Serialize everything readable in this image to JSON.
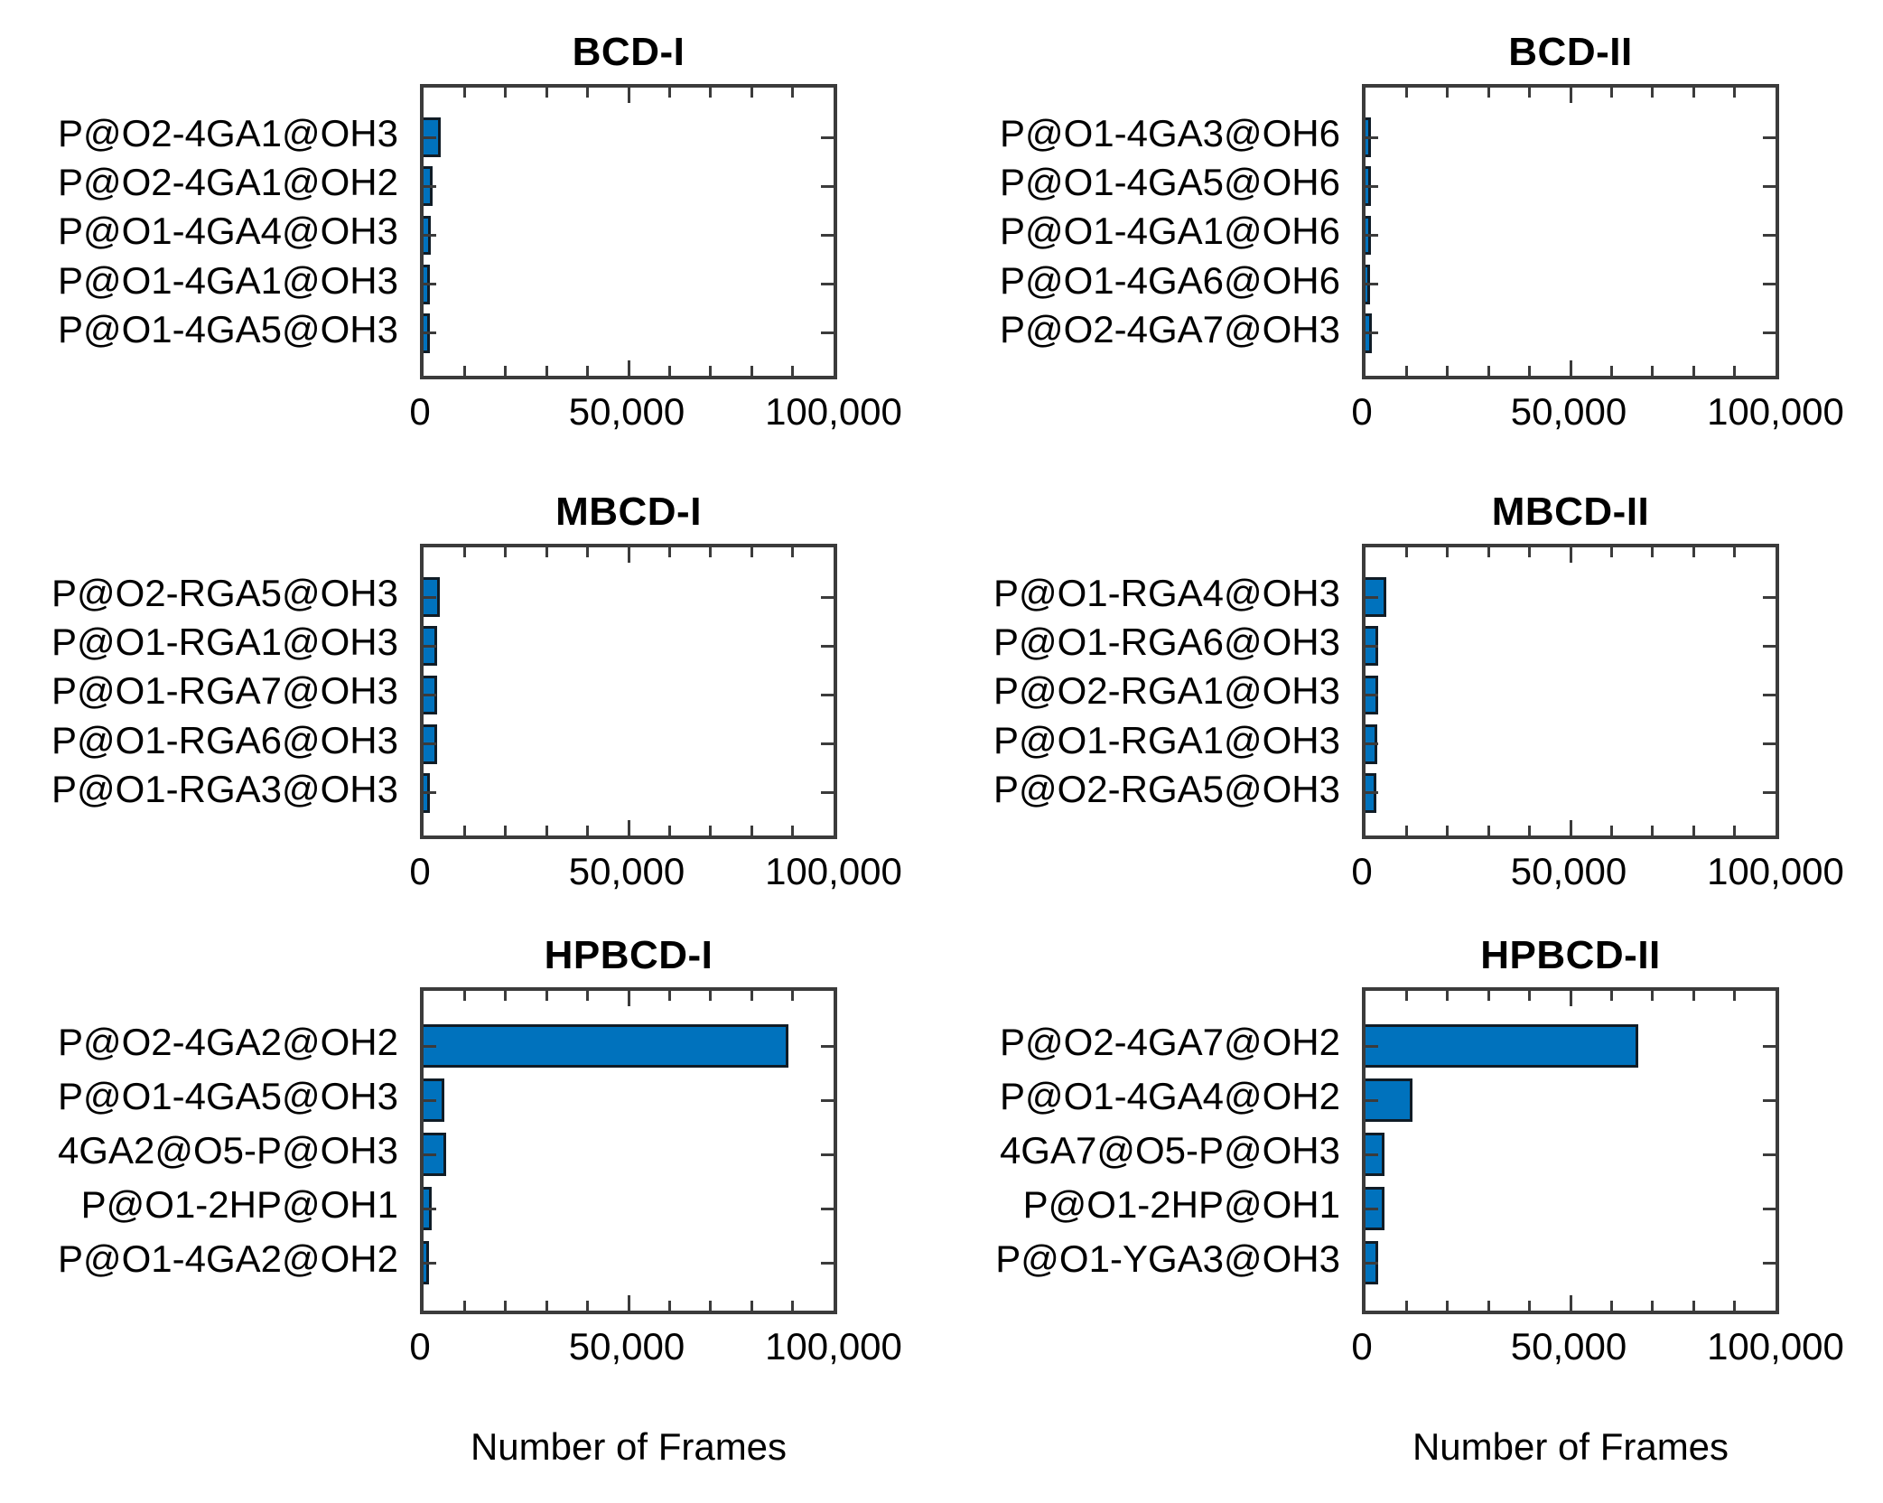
{
  "axis": {
    "xlabel": "Number of Frames",
    "tick_labels": [
      "0",
      "50,000",
      "100,000"
    ],
    "tick_values": [
      0,
      50000,
      100000
    ],
    "minor_tick_step": 10000,
    "xlim": [
      0,
      100000
    ]
  },
  "colors": {
    "bar_fill": "#0072BD",
    "bar_edge": "#101c26",
    "axis_line": "#3b3b3b",
    "text": "#000000",
    "background": "#ffffff"
  },
  "chart_data": [
    {
      "type": "bar",
      "orientation": "horizontal",
      "title": "BCD-I",
      "categories": [
        "P@O2-4GA1@OH3",
        "P@O2-4GA1@OH2",
        "P@O1-4GA4@OH3",
        "P@O1-4GA1@OH3",
        "P@O1-4GA5@OH3"
      ],
      "values": [
        4200,
        2200,
        1800,
        1600,
        1500
      ],
      "xlim": [
        0,
        100000
      ],
      "grid": false,
      "legend": null
    },
    {
      "type": "bar",
      "orientation": "horizontal",
      "title": "BCD-II",
      "categories": [
        "P@O1-4GA3@OH6",
        "P@O1-4GA5@OH6",
        "P@O1-4GA1@OH6",
        "P@O1-4GA6@OH6",
        "P@O2-4GA7@OH3"
      ],
      "values": [
        1400,
        1300,
        1300,
        1200,
        1500
      ],
      "xlim": [
        0,
        100000
      ],
      "grid": false,
      "legend": null
    },
    {
      "type": "bar",
      "orientation": "horizontal",
      "title": "MBCD-I",
      "categories": [
        "P@O2-RGA5@OH3",
        "P@O1-RGA1@OH3",
        "P@O1-RGA7@OH3",
        "P@O1-RGA6@OH3",
        "P@O1-RGA3@OH3"
      ],
      "values": [
        3900,
        3400,
        3300,
        3200,
        1500
      ],
      "xlim": [
        0,
        100000
      ],
      "grid": false,
      "legend": null
    },
    {
      "type": "bar",
      "orientation": "horizontal",
      "title": "MBCD-II",
      "categories": [
        "P@O1-RGA4@OH3",
        "P@O1-RGA6@OH3",
        "P@O2-RGA1@OH3",
        "P@O1-RGA1@OH3",
        "P@O2-RGA5@OH3"
      ],
      "values": [
        5000,
        3100,
        3100,
        2900,
        2600
      ],
      "xlim": [
        0,
        100000
      ],
      "grid": false,
      "legend": null
    },
    {
      "type": "bar",
      "orientation": "horizontal",
      "title": "HPBCD-I",
      "categories": [
        "P@O2-4GA2@OH2",
        "P@O1-4GA5@OH3",
        "4GA2@O5-P@OH3",
        "P@O1-2HP@OH1",
        "P@O1-4GA2@OH2"
      ],
      "values": [
        89000,
        5100,
        5500,
        1900,
        1400
      ],
      "xlim": [
        0,
        100000
      ],
      "grid": false,
      "legend": null
    },
    {
      "type": "bar",
      "orientation": "horizontal",
      "title": "HPBCD-II",
      "categories": [
        "P@O2-4GA7@OH2",
        "P@O1-4GA4@OH2",
        "4GA7@O5-P@OH3",
        "P@O1-2HP@OH1",
        "P@O1-YGA3@OH3"
      ],
      "values": [
        66500,
        11500,
        4700,
        4600,
        3100
      ],
      "xlim": [
        0,
        100000
      ],
      "grid": false,
      "legend": null
    }
  ]
}
